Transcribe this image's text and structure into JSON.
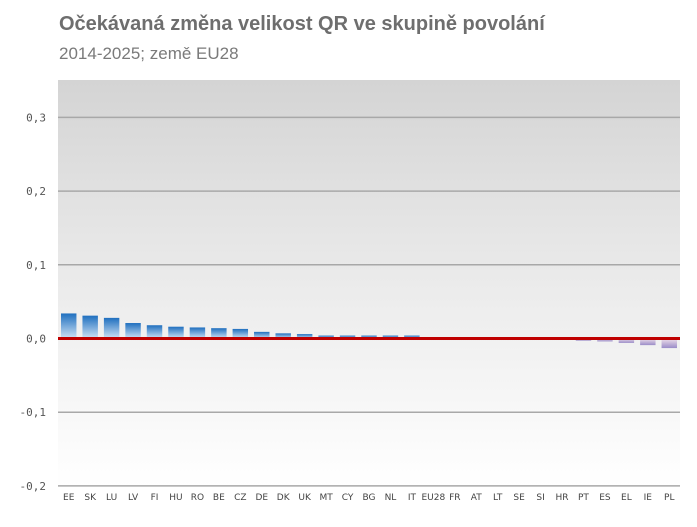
{
  "header": {
    "title": "Očekávaná změna velikost QR ve skupině povolání",
    "subtitle": "2014-2025; země EU28"
  },
  "chart_data": {
    "type": "bar",
    "title": "Očekávaná změna velikost QR ve skupině povolání",
    "subtitle": "2014-2025; země EU28",
    "categories": [
      "EE",
      "SK",
      "LU",
      "LV",
      "FI",
      "HU",
      "RO",
      "BE",
      "CZ",
      "DE",
      "DK",
      "UK",
      "MT",
      "CY",
      "BG",
      "NL",
      "IT",
      "EU28",
      "FR",
      "AT",
      "LT",
      "SE",
      "SI",
      "HR",
      "PT",
      "ES",
      "EL",
      "IE",
      "PL"
    ],
    "values": [
      0.034,
      0.031,
      0.028,
      0.021,
      0.018,
      0.016,
      0.015,
      0.014,
      0.013,
      0.009,
      0.007,
      0.006,
      0.004,
      0.004,
      0.004,
      0.004,
      0.004,
      0.002,
      0.0,
      0.0,
      0.0,
      0.0,
      0.0,
      0.0,
      -0.003,
      -0.004,
      -0.006,
      -0.009,
      -0.013
    ],
    "ylim": [
      -0.2,
      0.35
    ],
    "yticks": [
      -0.2,
      -0.1,
      0.0,
      0.1,
      0.2,
      0.3
    ],
    "ytick_labels": [
      "-0,2",
      "-0,1",
      "0,0",
      "0,1",
      "0,2",
      "0,3"
    ],
    "grid": true,
    "colors": {
      "positive_bar": "#1f6fbf",
      "negative_bar": "#b56a9a",
      "zero_line": "#c00000",
      "plot_background_top": "#d4d4d4"
    }
  }
}
